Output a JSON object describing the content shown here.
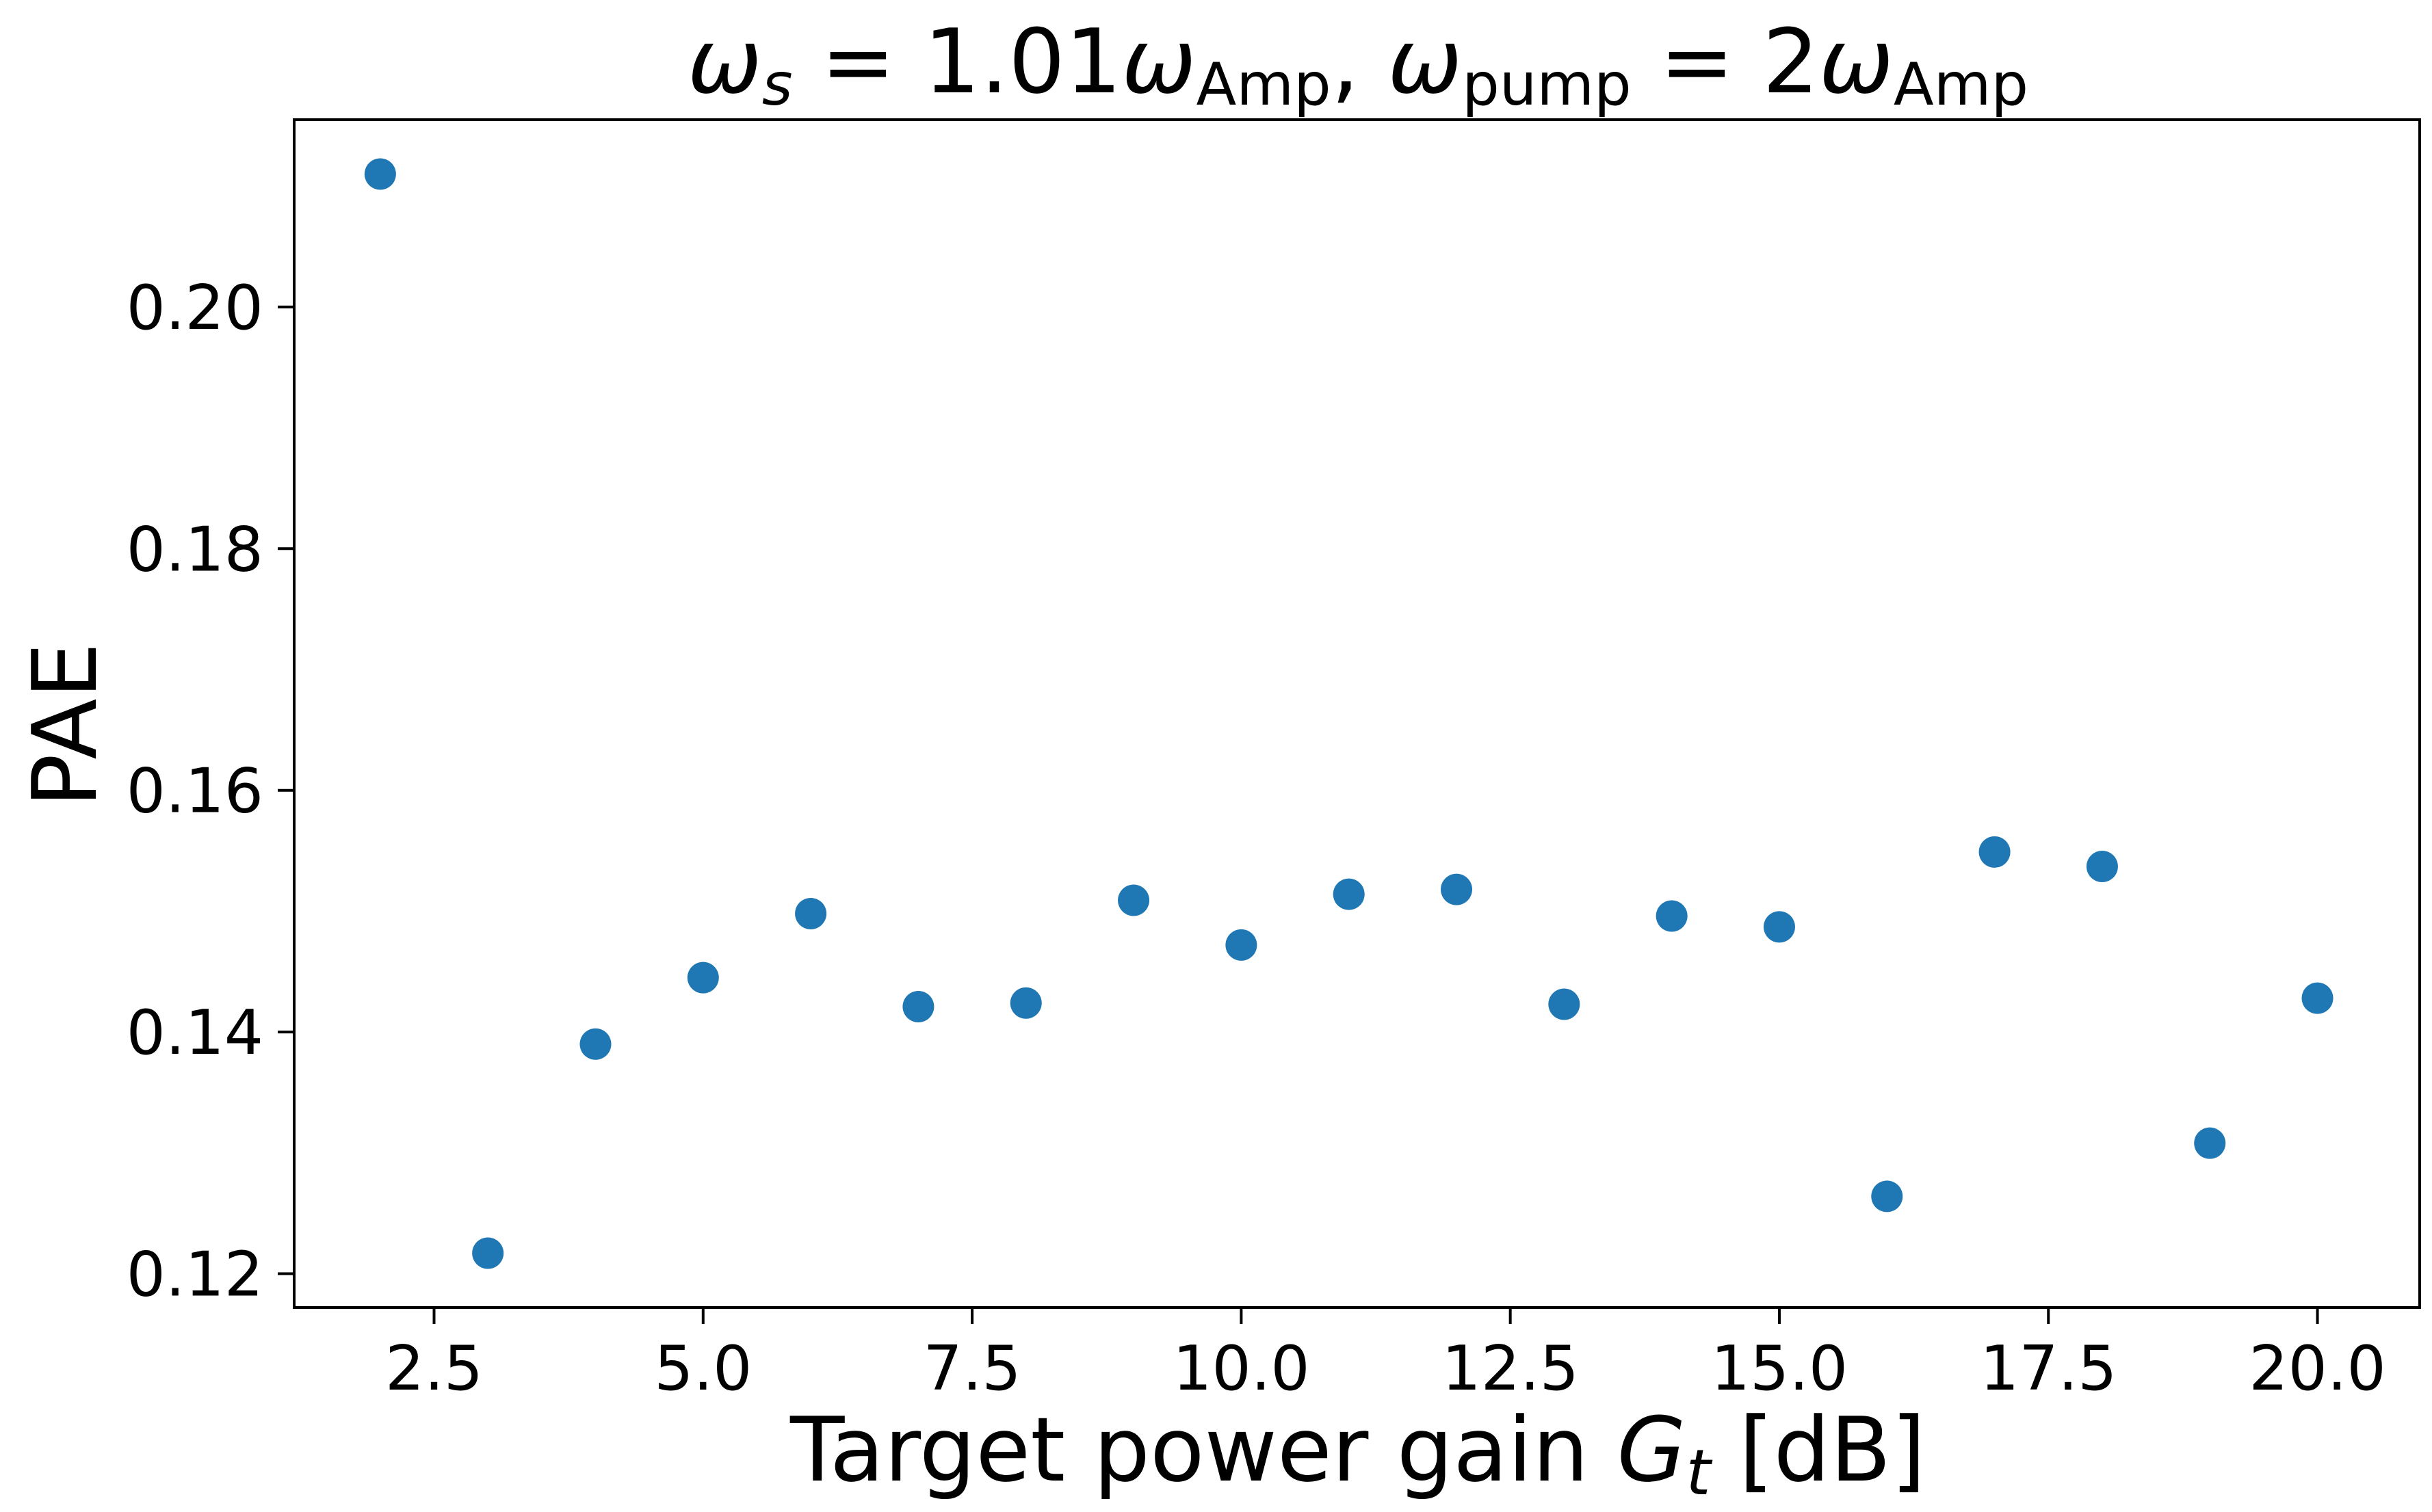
{
  "chart_data": {
    "type": "scatter",
    "title": {
      "omega": "ω",
      "s_sub": "s",
      "eq1": " = 1.01",
      "amp_sub": "Amp",
      "comma": ", ",
      "pump_sub": "pump",
      "eq2": " = 2"
    },
    "xlabel": {
      "main": "Target power gain ",
      "var": "G",
      "var_sub": "t",
      "unit": " [dB]"
    },
    "ylabel": "PAE",
    "xlim": [
      1.2,
      20.95
    ],
    "ylim": [
      0.1172,
      0.2155
    ],
    "xticks": [
      2.5,
      5.0,
      7.5,
      10.0,
      12.5,
      15.0,
      17.5,
      20.0
    ],
    "xtick_labels": [
      "2.5",
      "5.0",
      "7.5",
      "10.0",
      "12.5",
      "15.0",
      "17.5",
      "20.0"
    ],
    "yticks": [
      0.12,
      0.14,
      0.16,
      0.18,
      0.2
    ],
    "ytick_labels": [
      "0.12",
      "0.14",
      "0.16",
      "0.18",
      "0.20"
    ],
    "grid": false,
    "marker_color": "#1f77b4",
    "series": [
      {
        "x": [
          2,
          3,
          4,
          5,
          6,
          7,
          8,
          9,
          10,
          11,
          12,
          13,
          14,
          15,
          16,
          17,
          18,
          19,
          20
        ],
        "y": [
          0.211,
          0.1217,
          0.139,
          0.1445,
          0.1498,
          0.1421,
          0.1424,
          0.1509,
          0.1472,
          0.1514,
          0.1518,
          0.1423,
          0.1496,
          0.1487,
          0.1264,
          0.1549,
          0.1537,
          0.1308,
          0.1428
        ]
      }
    ]
  }
}
